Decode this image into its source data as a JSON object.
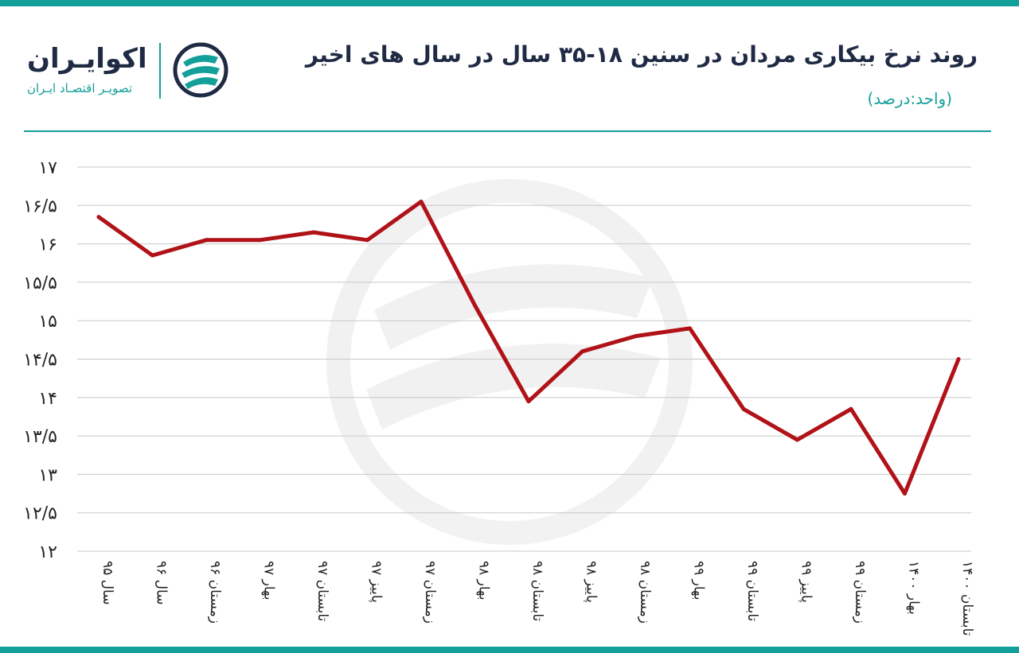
{
  "header": {
    "title": "روند نرخ بیکاری مردان در سنین ۱۸-۳۵ سال در سال های اخیر",
    "unit": "(واحد:درصد)"
  },
  "logo": {
    "name": "اکوایـران",
    "tagline": "تصویـر اقتصـاد ایـران",
    "icon": "ecoiran-logo-icon"
  },
  "colors": {
    "accent": "#14a09a",
    "line": "#b01218",
    "title": "#1f2a44",
    "grid": "#c8c8c8"
  },
  "chart_data": {
    "type": "line",
    "categories": [
      "سال ۹۵",
      "سال ۹۶",
      "زمستان ۹۶",
      "بهار ۹۷",
      "تابستان ۹۷",
      "پاییز ۹۷",
      "زمستان ۹۷",
      "بهار ۹۸",
      "تابستان ۹۸",
      "پاییز ۹۸",
      "زمستان ۹۸",
      "بهار ۹۹",
      "تابستان ۹۹",
      "پاییز ۹۹",
      "زمستان ۹۹",
      "بهار ۱۴۰۰",
      "تابستان ۱۴۰۰"
    ],
    "values": [
      16.35,
      15.85,
      16.05,
      16.05,
      16.15,
      16.05,
      16.55,
      15.2,
      13.95,
      14.6,
      14.8,
      14.9,
      13.85,
      13.45,
      13.85,
      12.75,
      14.5
    ],
    "ylim": [
      12,
      17
    ],
    "yticks": [
      12,
      12.5,
      13,
      13.5,
      14,
      14.5,
      15,
      15.5,
      16,
      16.5,
      17
    ],
    "ytick_labels": [
      "۱۲",
      "۱۲/۵",
      "۱۳",
      "۱۳/۵",
      "۱۴",
      "۱۴/۵",
      "۱۵",
      "۱۵/۵",
      "۱۶",
      "۱۶/۵",
      "۱۷"
    ],
    "grid": true,
    "legend": "none"
  }
}
